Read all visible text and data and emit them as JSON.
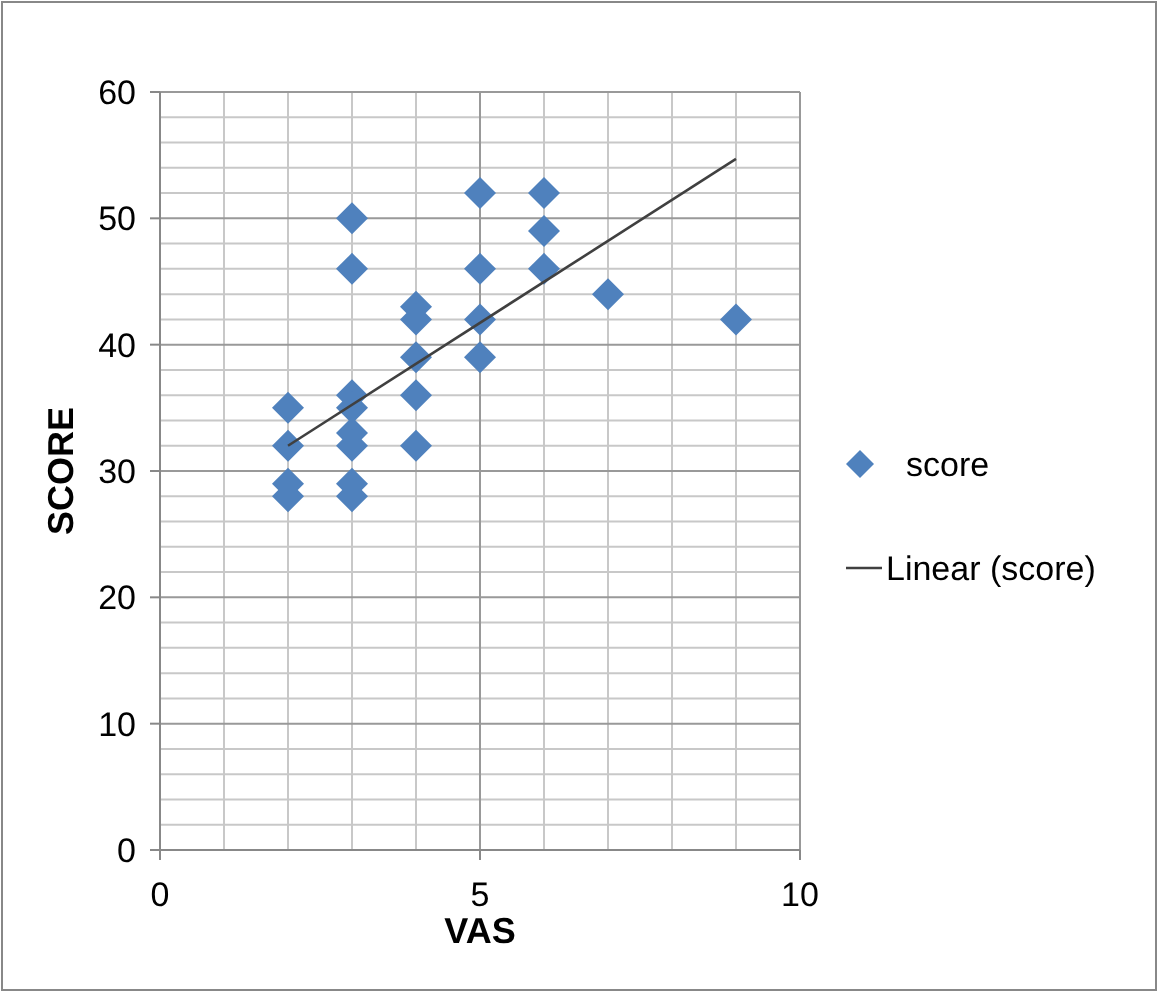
{
  "chart_data": {
    "type": "scatter",
    "xlabel": "VAS",
    "ylabel": "SCORE",
    "xlim": [
      0,
      10
    ],
    "ylim": [
      0,
      60
    ],
    "xticks": [
      0,
      5,
      10
    ],
    "yticks": [
      0,
      10,
      20,
      30,
      40,
      50,
      60
    ],
    "grid": true,
    "legend": "right",
    "marker": "diamond",
    "series": [
      {
        "name": "score",
        "color": "#4f81bd",
        "x": [
          2,
          2,
          2,
          2,
          3,
          3,
          3,
          3,
          3,
          3,
          3,
          3,
          4,
          4,
          4,
          4,
          4,
          5,
          5,
          5,
          5,
          6,
          6,
          6,
          7,
          9
        ],
        "values": [
          35,
          32,
          29,
          28,
          50,
          46,
          36,
          35,
          33,
          32,
          29,
          28,
          43,
          42,
          39,
          36,
          32,
          52,
          46,
          42,
          39,
          52,
          49,
          46,
          44,
          42
        ]
      },
      {
        "name": "Linear (score)",
        "type": "line",
        "color": "#404040",
        "marker": "none",
        "x": [
          2,
          9
        ],
        "values": [
          32,
          54.7
        ]
      }
    ]
  }
}
